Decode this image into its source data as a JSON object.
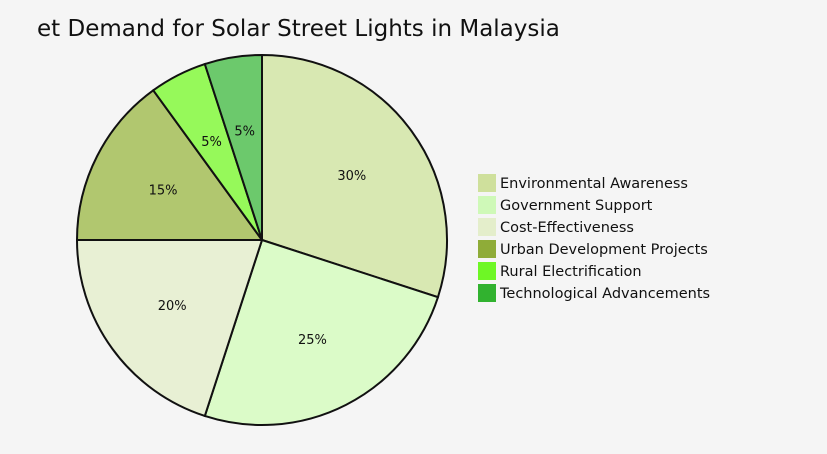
{
  "chart_data": {
    "type": "pie",
    "title": "et Demand for Solar Street Lights in Malaysia",
    "slices": [
      {
        "label": "Environmental Awareness",
        "value": 30,
        "display": "30%",
        "color": "#d8e8b2",
        "legend_color": "#cfe09c"
      },
      {
        "label": "Government Support",
        "value": 25,
        "display": "25%",
        "color": "#dbfbc8",
        "legend_color": "#cff9b8"
      },
      {
        "label": "Cost-Effectiveness",
        "value": 20,
        "display": "20%",
        "color": "#e8f0d4",
        "legend_color": "#e4eecb"
      },
      {
        "label": "Urban Development Projects",
        "value": 15,
        "display": "15%",
        "color": "#b1c76f",
        "legend_color": "#8fac38"
      },
      {
        "label": "Rural Electrification",
        "value": 5,
        "display": "5%",
        "color": "#96f95a",
        "legend_color": "#6ef725"
      },
      {
        "label": "Technological Advancements",
        "value": 5,
        "display": "5%",
        "color": "#6cc96c",
        "legend_color": "#31b22f"
      }
    ],
    "legend_position": "right"
  }
}
